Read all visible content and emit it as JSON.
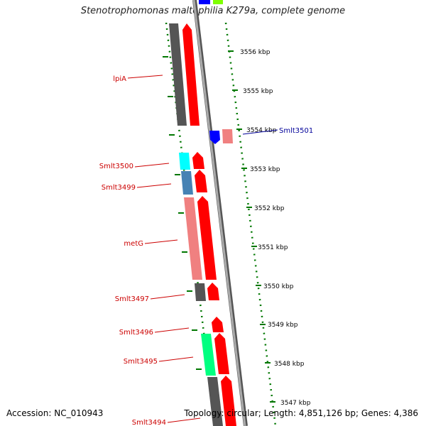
{
  "title": "Stenotrophomonas maltophilia K279a, complete genome",
  "footer": {
    "accession": "Accession: NC_010943",
    "topology": "Topology: circular; Length: 4,851,126 bp; Genes: 4,386"
  },
  "kbp_labels": [
    "3556 kbp",
    "3555 kbp",
    "3554 kbp",
    "3553 kbp",
    "3552 kbp",
    "3551 kbp",
    "3550 kbp",
    "3549 kbp",
    "3548 kbp",
    "3547 kbp"
  ],
  "gene_labels": [
    "lpiA",
    "Smlt3501",
    "Smlt3500",
    "Smlt3499",
    "metG",
    "Smlt3497",
    "Smlt3496",
    "Smlt3495",
    "Smlt3494"
  ],
  "colors": {
    "cds_red": "#ff0000",
    "blue": "#0000ff",
    "cyan": "#00ffff",
    "steel_blue": "#4682b4",
    "salmon": "#f08080",
    "gray": "#555555",
    "green": "#00ff80",
    "tick_green": "#007700",
    "label_red": "#cc0000",
    "label_blue": "#000099"
  }
}
